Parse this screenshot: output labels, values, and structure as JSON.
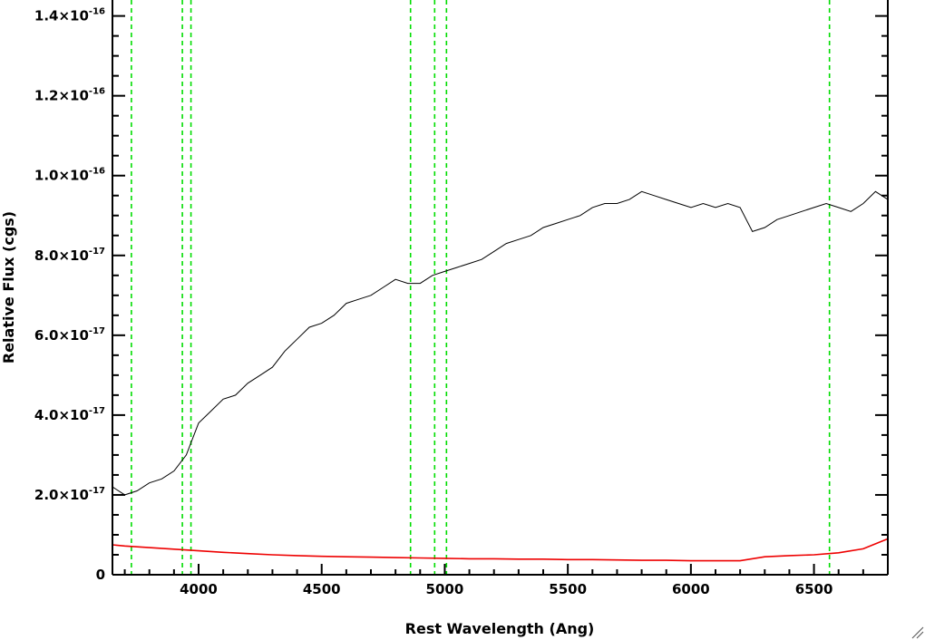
{
  "chart_data": {
    "type": "line",
    "title": "",
    "xlabel": "Rest Wavelength (Ang)",
    "ylabel": "Relative Flux (cgs)",
    "xlim": [
      3650,
      6800
    ],
    "ylim": [
      0,
      1.44e-16
    ],
    "x_ticks": [
      {
        "value": 4000,
        "label": "4000"
      },
      {
        "value": 4500,
        "label": "4500"
      },
      {
        "value": 5000,
        "label": "5000"
      },
      {
        "value": 5500,
        "label": "5500"
      },
      {
        "value": 6000,
        "label": "6000"
      },
      {
        "value": 6500,
        "label": "6500"
      }
    ],
    "y_ticks": [
      {
        "value": 0,
        "label": "0",
        "exp": ""
      },
      {
        "value": 2e-17,
        "label": "2.0×10",
        "exp": "-17"
      },
      {
        "value": 4e-17,
        "label": "4.0×10",
        "exp": "-17"
      },
      {
        "value": 6e-17,
        "label": "6.0×10",
        "exp": "-17"
      },
      {
        "value": 8e-17,
        "label": "8.0×10",
        "exp": "-17"
      },
      {
        "value": 1e-16,
        "label": "1.0×10",
        "exp": "-16"
      },
      {
        "value": 1.2e-16,
        "label": "1.2×10",
        "exp": "-16"
      },
      {
        "value": 1.4e-16,
        "label": "1.4×10",
        "exp": "-16"
      }
    ],
    "vertical_lines": [
      3727,
      3934,
      3969,
      4861,
      4959,
      5007,
      6563
    ],
    "vertical_line_color": "#00dd00",
    "series": [
      {
        "color": "#000000",
        "points": [
          [
            3650,
            2.2e-17
          ],
          [
            3700,
            2e-17
          ],
          [
            3750,
            2.1e-17
          ],
          [
            3800,
            2.3e-17
          ],
          [
            3850,
            2.4e-17
          ],
          [
            3900,
            2.6e-17
          ],
          [
            3950,
            3e-17
          ],
          [
            4000,
            3.8e-17
          ],
          [
            4050,
            4.1e-17
          ],
          [
            4100,
            4.4e-17
          ],
          [
            4150,
            4.5e-17
          ],
          [
            4200,
            4.8e-17
          ],
          [
            4250,
            5e-17
          ],
          [
            4300,
            5.2e-17
          ],
          [
            4350,
            5.6e-17
          ],
          [
            4400,
            5.9e-17
          ],
          [
            4450,
            6.2e-17
          ],
          [
            4500,
            6.3e-17
          ],
          [
            4550,
            6.5e-17
          ],
          [
            4600,
            6.8e-17
          ],
          [
            4650,
            6.9e-17
          ],
          [
            4700,
            7e-17
          ],
          [
            4750,
            7.2e-17
          ],
          [
            4800,
            7.4e-17
          ],
          [
            4850,
            7.3e-17
          ],
          [
            4900,
            7.3e-17
          ],
          [
            4950,
            7.5e-17
          ],
          [
            5000,
            7.6e-17
          ],
          [
            5050,
            7.7e-17
          ],
          [
            5100,
            7.8e-17
          ],
          [
            5150,
            7.9e-17
          ],
          [
            5200,
            8.1e-17
          ],
          [
            5250,
            8.3e-17
          ],
          [
            5300,
            8.4e-17
          ],
          [
            5350,
            8.5e-17
          ],
          [
            5400,
            8.7e-17
          ],
          [
            5450,
            8.8e-17
          ],
          [
            5500,
            8.9e-17
          ],
          [
            5550,
            9e-17
          ],
          [
            5600,
            9.2e-17
          ],
          [
            5650,
            9.3e-17
          ],
          [
            5700,
            9.3e-17
          ],
          [
            5750,
            9.4e-17
          ],
          [
            5800,
            9.6e-17
          ],
          [
            5850,
            9.5e-17
          ],
          [
            5900,
            9.4e-17
          ],
          [
            5950,
            9.3e-17
          ],
          [
            6000,
            9.2e-17
          ],
          [
            6050,
            9.3e-17
          ],
          [
            6100,
            9.2e-17
          ],
          [
            6150,
            9.3e-17
          ],
          [
            6200,
            9.2e-17
          ],
          [
            6250,
            8.6e-17
          ],
          [
            6300,
            8.7e-17
          ],
          [
            6350,
            8.9e-17
          ],
          [
            6400,
            9e-17
          ],
          [
            6450,
            9.1e-17
          ],
          [
            6500,
            9.2e-17
          ],
          [
            6550,
            9.3e-17
          ],
          [
            6600,
            9.2e-17
          ],
          [
            6650,
            9.1e-17
          ],
          [
            6700,
            9.3e-17
          ],
          [
            6750,
            9.6e-17
          ],
          [
            6800,
            9.4e-17
          ]
        ]
      },
      {
        "color": "#ee0000",
        "points": [
          [
            3650,
            7.5e-18
          ],
          [
            3700,
            7.2e-18
          ],
          [
            3800,
            6.8e-18
          ],
          [
            3900,
            6.4e-18
          ],
          [
            4000,
            6e-18
          ],
          [
            4100,
            5.6e-18
          ],
          [
            4200,
            5.3e-18
          ],
          [
            4300,
            5e-18
          ],
          [
            4400,
            4.8e-18
          ],
          [
            4500,
            4.6e-18
          ],
          [
            4600,
            4.5e-18
          ],
          [
            4700,
            4.4e-18
          ],
          [
            4800,
            4.3e-18
          ],
          [
            4900,
            4.2e-18
          ],
          [
            5000,
            4.1e-18
          ],
          [
            5100,
            4e-18
          ],
          [
            5200,
            4e-18
          ],
          [
            5300,
            3.9e-18
          ],
          [
            5400,
            3.9e-18
          ],
          [
            5500,
            3.8e-18
          ],
          [
            5600,
            3.8e-18
          ],
          [
            5700,
            3.7e-18
          ],
          [
            5800,
            3.6e-18
          ],
          [
            5900,
            3.6e-18
          ],
          [
            6000,
            3.5e-18
          ],
          [
            6100,
            3.5e-18
          ],
          [
            6200,
            3.5e-18
          ],
          [
            6300,
            4.5e-18
          ],
          [
            6400,
            4.8e-18
          ],
          [
            6500,
            5e-18
          ],
          [
            6600,
            5.5e-18
          ],
          [
            6700,
            6.5e-18
          ],
          [
            6800,
            9e-18
          ]
        ]
      }
    ]
  }
}
